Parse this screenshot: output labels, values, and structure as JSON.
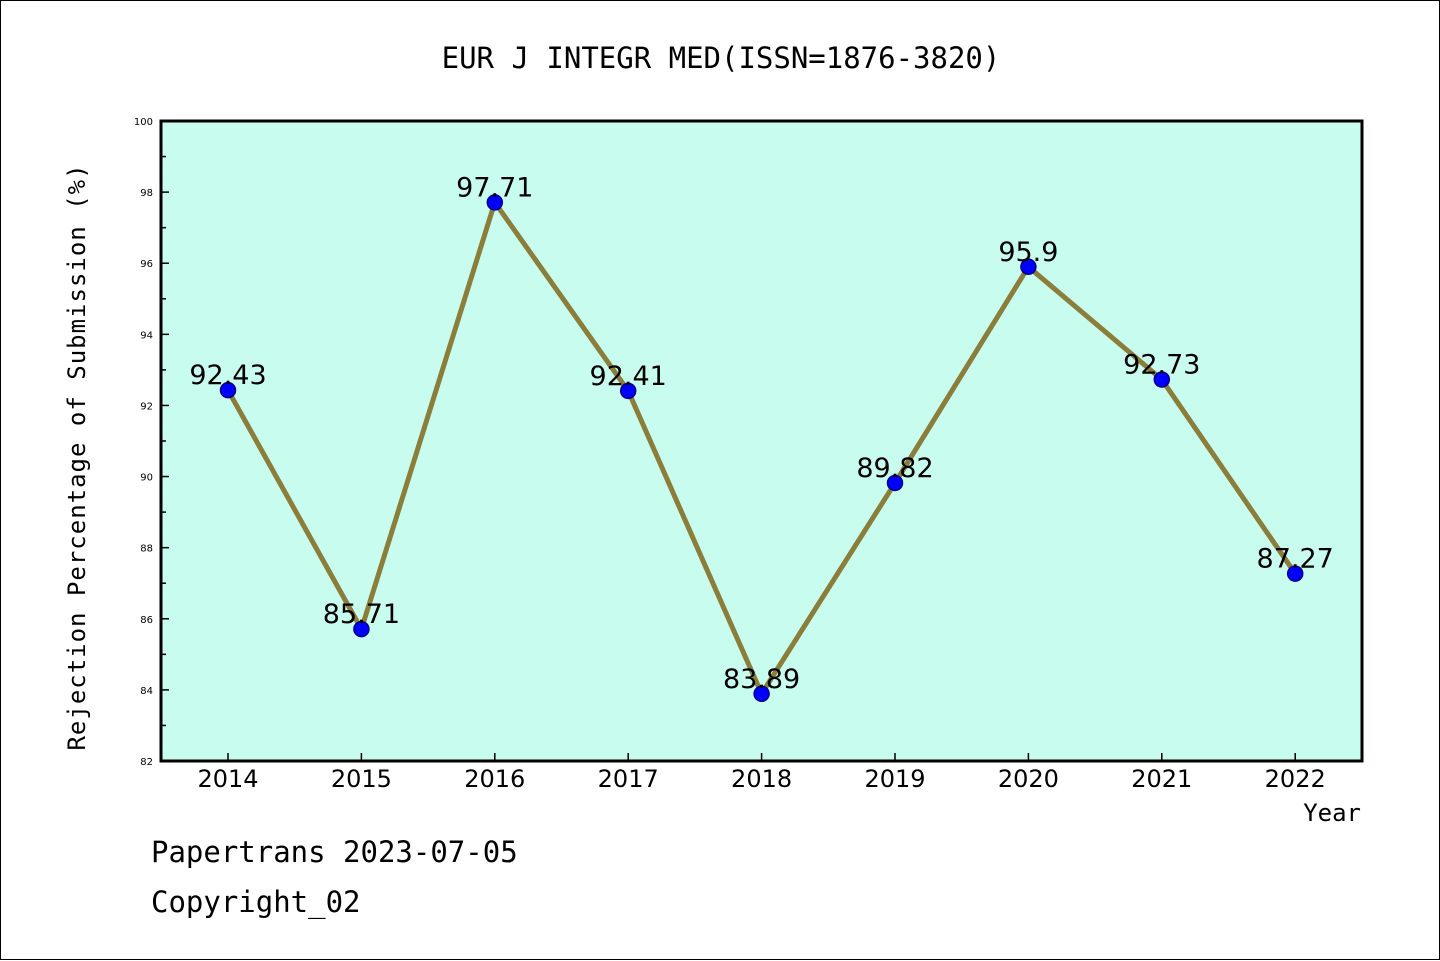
{
  "chart_data": {
    "type": "line",
    "title": "EUR J INTEGR MED(ISSN=1876-3820)",
    "xlabel": "Year",
    "ylabel": "Rejection Percentage of Submission (%)",
    "categories": [
      "2014",
      "2015",
      "2016",
      "2017",
      "2018",
      "2019",
      "2020",
      "2021",
      "2022"
    ],
    "values": [
      92.43,
      85.71,
      97.71,
      92.41,
      83.89,
      89.82,
      95.9,
      92.73,
      87.27
    ],
    "data_labels": [
      "92.43",
      "85.71",
      "97.71",
      "92.41",
      "83.89",
      "89.82",
      "95.9",
      "92.73",
      "87.27"
    ],
    "ylim": [
      82,
      100
    ],
    "yticks": [
      "82",
      "84",
      "86",
      "88",
      "90",
      "92",
      "94",
      "96",
      "98",
      "100"
    ],
    "grid": false,
    "legend": "none",
    "colors": {
      "plot_background": "#c8fcee",
      "line": "#8b7d3a",
      "marker": "#0000ff",
      "marker_edge": "#00008b"
    }
  },
  "footer": {
    "line1": "Papertrans 2023-07-05",
    "line2": "Copyright_02"
  }
}
